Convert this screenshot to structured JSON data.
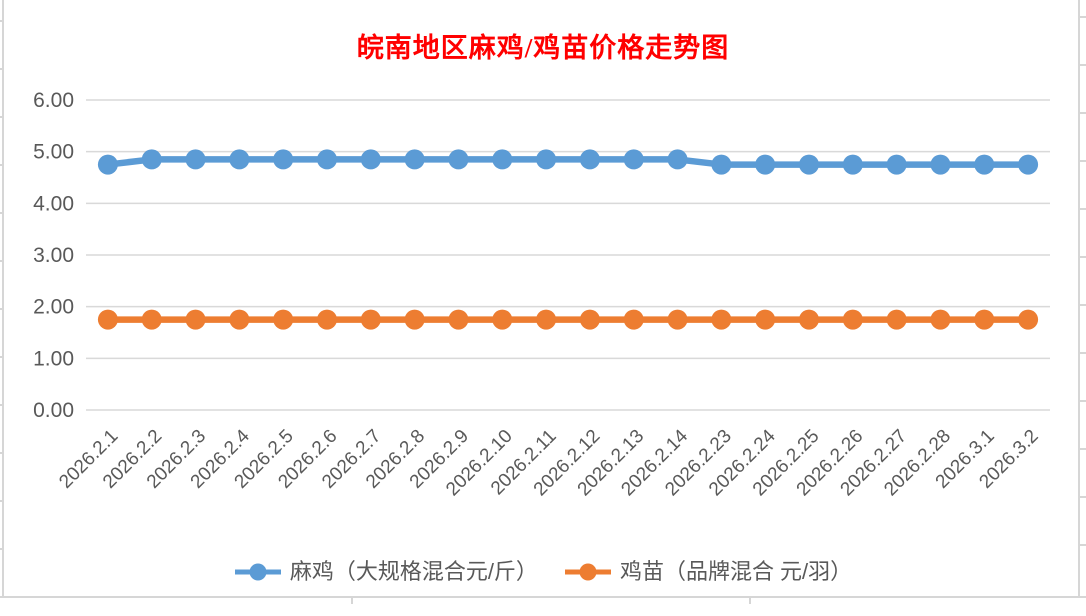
{
  "title": "皖南地区麻鸡/鸡苗价格走势图",
  "title_color": "#FF0000",
  "chart_data": {
    "type": "line",
    "title": "皖南地区麻鸡/鸡苗价格走势图",
    "categories": [
      "2026.2.1",
      "2026.2.2",
      "2026.2.3",
      "2026.2.4",
      "2026.2.5",
      "2026.2.6",
      "2026.2.7",
      "2026.2.8",
      "2026.2.9",
      "2026.2.10",
      "2026.2.11",
      "2026.2.12",
      "2026.2.13",
      "2026.2.14",
      "2026.2.23",
      "2026.2.24",
      "2026.2.25",
      "2026.2.26",
      "2026.2.27",
      "2026.2.28",
      "2026.3.1",
      "2026.3.2"
    ],
    "series": [
      {
        "name": "麻鸡（大规格混合元/斤）",
        "color": "#5B9BD5",
        "values": [
          4.75,
          4.85,
          4.85,
          4.85,
          4.85,
          4.85,
          4.85,
          4.85,
          4.85,
          4.85,
          4.85,
          4.85,
          4.85,
          4.85,
          4.75,
          4.75,
          4.75,
          4.75,
          4.75,
          4.75,
          4.75,
          4.75
        ]
      },
      {
        "name": "鸡苗（品牌混合 元/羽）",
        "color": "#ED7D31",
        "values": [
          1.75,
          1.75,
          1.75,
          1.75,
          1.75,
          1.75,
          1.75,
          1.75,
          1.75,
          1.75,
          1.75,
          1.75,
          1.75,
          1.75,
          1.75,
          1.75,
          1.75,
          1.75,
          1.75,
          1.75,
          1.75,
          1.75
        ]
      }
    ],
    "xlabel": "",
    "ylabel": "",
    "ylim": [
      0,
      6
    ],
    "ytick_step": 1,
    "ytick_labels": [
      "0.00",
      "1.00",
      "2.00",
      "3.00",
      "4.00",
      "5.00",
      "6.00"
    ],
    "grid": "horizontal",
    "gridline_color": "#D9D9D9",
    "axis_label_color": "#595959",
    "legend_position": "bottom"
  },
  "legend": {
    "items": [
      {
        "label": "麻鸡（大规格混合元/斤）",
        "color": "#5B9BD5"
      },
      {
        "label": "鸡苗（品牌混合 元/羽）",
        "color": "#ED7D31"
      }
    ]
  }
}
